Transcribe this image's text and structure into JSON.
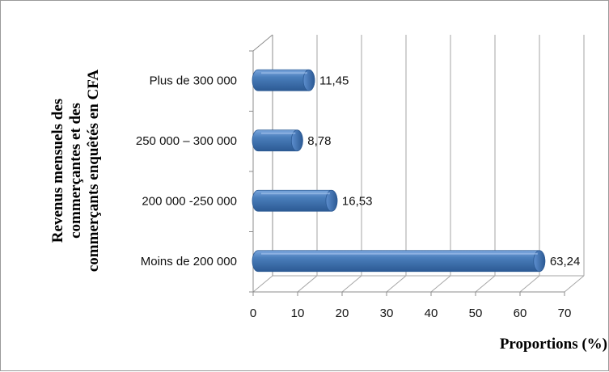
{
  "chart_data": {
    "type": "bar",
    "orientation": "horizontal",
    "style": "3d-cylinder",
    "categories": [
      "Moins de 200 000",
      "200 000 -250 000",
      "250 000 – 300 000",
      "Plus de 300 000"
    ],
    "values": [
      63.24,
      16.53,
      8.78,
      11.45
    ],
    "value_labels": [
      "63,24",
      "16,53",
      "8,78",
      "11,45"
    ],
    "xlabel": "Proportions (%)",
    "ylabel_lines": [
      "Revenus mensuels des",
      "commerçantes et des",
      "commerçants enquêtés en CFA"
    ],
    "xlim": [
      0,
      70
    ],
    "xticks": [
      0,
      10,
      20,
      30,
      40,
      50,
      60,
      70
    ],
    "grid": "vertical",
    "legend": "none",
    "colors": {
      "bar_main": "#4a7ebb",
      "bar_light": "#7aa6dd",
      "bar_dark": "#2c5a94",
      "bar_cap": "#5d8fcf",
      "grid": "#a6a6a6",
      "axis": "#8c8c8c"
    }
  }
}
